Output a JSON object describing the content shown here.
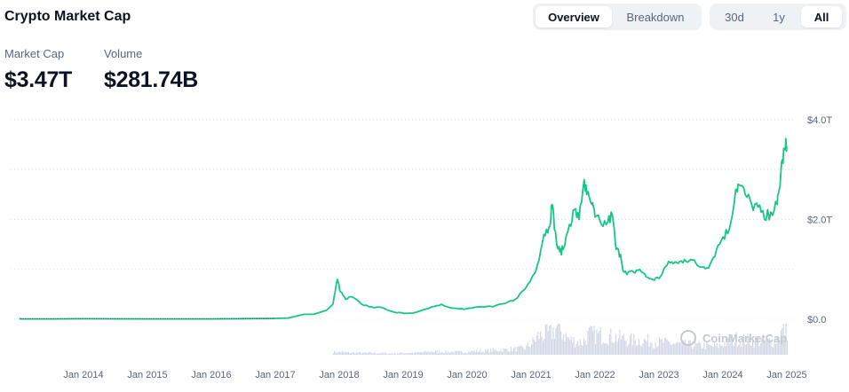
{
  "header": {
    "title": "Crypto Market Cap"
  },
  "view_tabs": [
    {
      "label": "Overview",
      "active": true
    },
    {
      "label": "Breakdown",
      "active": false
    }
  ],
  "range_tabs": [
    {
      "label": "30d",
      "active": false
    },
    {
      "label": "1y",
      "active": false
    },
    {
      "label": "All",
      "active": true
    }
  ],
  "stats": {
    "market_cap_label": "Market Cap",
    "market_cap_value": "$3.47T",
    "volume_label": "Volume",
    "volume_value": "$281.74B"
  },
  "watermark": "CoinMarketCap",
  "colors": {
    "line": "#16c784",
    "volume": "#cfd6e4",
    "grid": "#dfe3ea",
    "text": "#58667e"
  },
  "chart_data": {
    "type": "line",
    "title": "Crypto Market Cap",
    "xlabel": "",
    "ylabel": "",
    "series": [
      {
        "name": "Market Cap (T USD)",
        "x": [
          2013.0,
          2013.5,
          2014.0,
          2014.5,
          2015.0,
          2015.5,
          2016.0,
          2016.5,
          2017.0,
          2017.2,
          2017.45,
          2017.6,
          2017.8,
          2017.9,
          2017.97,
          2018.02,
          2018.1,
          2018.2,
          2018.35,
          2018.5,
          2018.7,
          2018.9,
          2019.0,
          2019.2,
          2019.45,
          2019.6,
          2019.8,
          2019.95,
          2020.2,
          2020.4,
          2020.6,
          2020.75,
          2020.9,
          2021.0,
          2021.1,
          2021.2,
          2021.28,
          2021.33,
          2021.4,
          2021.45,
          2021.5,
          2021.6,
          2021.68,
          2021.75,
          2021.83,
          2021.87,
          2021.95,
          2022.0,
          2022.1,
          2022.2,
          2022.27,
          2022.33,
          2022.4,
          2022.45,
          2022.5,
          2022.6,
          2022.7,
          2022.8,
          2022.9,
          2023.0,
          2023.1,
          2023.2,
          2023.3,
          2023.4,
          2023.5,
          2023.6,
          2023.7,
          2023.8,
          2023.9,
          2024.0,
          2024.1,
          2024.2,
          2024.25,
          2024.35,
          2024.45,
          2024.55,
          2024.65,
          2024.75,
          2024.85,
          2024.88,
          2024.93,
          2024.97,
          2025.0
        ],
        "y": [
          0.008,
          0.008,
          0.01,
          0.009,
          0.007,
          0.007,
          0.008,
          0.012,
          0.018,
          0.025,
          0.1,
          0.1,
          0.18,
          0.3,
          0.8,
          0.55,
          0.4,
          0.45,
          0.3,
          0.25,
          0.22,
          0.13,
          0.12,
          0.14,
          0.25,
          0.3,
          0.22,
          0.2,
          0.25,
          0.25,
          0.32,
          0.4,
          0.6,
          0.8,
          1.1,
          1.7,
          1.85,
          2.3,
          1.5,
          1.35,
          1.4,
          1.9,
          2.2,
          2.0,
          2.8,
          2.5,
          2.3,
          2.05,
          1.9,
          1.95,
          2.1,
          1.4,
          1.3,
          0.95,
          0.9,
          0.95,
          1.0,
          0.85,
          0.8,
          0.82,
          1.05,
          1.15,
          1.12,
          1.2,
          1.2,
          1.08,
          1.05,
          1.1,
          1.4,
          1.65,
          1.8,
          2.6,
          2.7,
          2.5,
          2.3,
          2.25,
          2.0,
          2.15,
          2.3,
          2.6,
          3.2,
          3.4,
          3.47
        ]
      }
    ],
    "volume_series": {
      "name": "Volume",
      "x": [
        2017.9,
        2018.1,
        2018.4,
        2018.8,
        2019.2,
        2019.45,
        2019.8,
        2020.2,
        2020.6,
        2020.9,
        2021.0,
        2021.1,
        2021.3,
        2021.4,
        2021.6,
        2021.8,
        2021.9,
        2022.2,
        2022.4,
        2022.5,
        2022.8,
        2023.2,
        2023.6,
        2023.9,
        2024.2,
        2024.5,
        2024.8,
        2024.95
      ],
      "y": [
        30,
        25,
        20,
        15,
        22,
        35,
        28,
        40,
        55,
        70,
        120,
        200,
        230,
        300,
        160,
        130,
        220,
        200,
        180,
        160,
        150,
        120,
        100,
        90,
        170,
        150,
        140,
        280
      ]
    },
    "x_ticks": [
      "Jan 2014",
      "Jan 2015",
      "Jan 2016",
      "Jan 2017",
      "Jan 2018",
      "Jan 2019",
      "Jan 2020",
      "Jan 2021",
      "Jan 2022",
      "Jan 2023",
      "Jan 2024",
      "Jan 2025"
    ],
    "x_tick_values": [
      2014,
      2015,
      2016,
      2017,
      2018,
      2019,
      2020,
      2021,
      2022,
      2023,
      2024,
      2025
    ],
    "y_ticks": [
      "$0.0",
      "$2.0T",
      "$4.0T"
    ],
    "y_tick_values": [
      0,
      2,
      4
    ],
    "xlim": [
      2013.0,
      2025.0
    ],
    "ylim": [
      0,
      4
    ],
    "grid": true
  }
}
